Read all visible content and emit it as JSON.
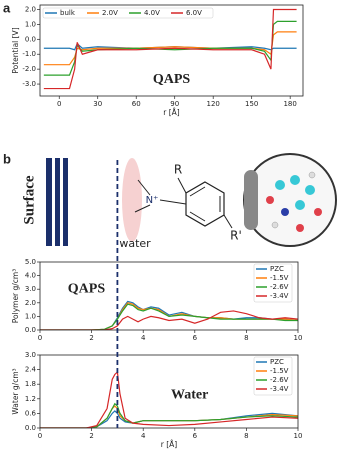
{
  "panel_labels": [
    "a",
    "b"
  ],
  "diagram": {
    "surface": "Surface",
    "substituent_top": "R",
    "nitrogen": "N⁺",
    "substituent_bottom": "R'",
    "water": "water"
  },
  "chart_data": [
    {
      "type": "line",
      "annotation": "QAPS",
      "xlabel": "r [Å]",
      "ylabel": "Potential [V]",
      "x": [
        -12,
        8,
        12,
        14,
        18,
        30,
        60,
        90,
        120,
        150,
        160,
        165,
        167,
        170,
        185
      ],
      "series": [
        {
          "name": "bulk",
          "color": "#1f77b4",
          "values": [
            -0.6,
            -0.6,
            -0.7,
            -0.3,
            -0.6,
            -0.5,
            -0.6,
            -0.5,
            -0.6,
            -0.5,
            -0.6,
            -0.7,
            -0.6,
            -0.6,
            -0.6
          ]
        },
        {
          "name": "2.0V",
          "color": "#ff7f0e",
          "values": [
            -1.7,
            -1.7,
            -1.2,
            -0.6,
            -0.7,
            -0.6,
            -0.6,
            -0.5,
            -0.6,
            -0.6,
            -0.7,
            -1.0,
            0.3,
            0.5,
            0.5
          ]
        },
        {
          "name": "4.0V",
          "color": "#2ca02c",
          "values": [
            -2.4,
            -2.4,
            -1.5,
            -0.4,
            -0.8,
            -0.7,
            -0.6,
            -0.7,
            -0.6,
            -0.6,
            -0.8,
            -1.4,
            1.0,
            1.2,
            1.2
          ]
        },
        {
          "name": "6.0V",
          "color": "#d62728",
          "values": [
            -3.3,
            -3.3,
            -2.0,
            -0.2,
            -1.0,
            -0.7,
            -0.7,
            -0.6,
            -0.7,
            -0.7,
            -1.0,
            -2.0,
            2.0,
            2.0,
            2.0
          ]
        }
      ],
      "xlim": [
        -15,
        190
      ],
      "xticks": [
        0,
        30,
        60,
        90,
        120,
        150,
        180
      ],
      "ylim": [
        -3.8,
        2.3
      ],
      "yticks": [
        {
          "value": 2,
          "label": "2.0"
        },
        {
          "value": 1,
          "label": "1.0"
        },
        {
          "value": 0,
          "label": "0.0"
        },
        {
          "value": -1,
          "label": "-1.0"
        },
        {
          "value": -2,
          "label": "-2.0"
        },
        {
          "value": -3,
          "label": "-3.0"
        }
      ],
      "legend": "upper left"
    },
    {
      "type": "line",
      "annotation": "QAPS",
      "ylabel": "Polymer g/cm³",
      "x": [
        0,
        2,
        2.5,
        2.8,
        3.0,
        3.2,
        3.4,
        3.6,
        3.8,
        4,
        4.3,
        4.6,
        5,
        5.5,
        6,
        6.5,
        7,
        7.5,
        8,
        8.5,
        9,
        9.5,
        10
      ],
      "series": [
        {
          "name": "PZC",
          "color": "#1f77b4",
          "values": [
            0,
            0,
            0.05,
            0.3,
            0.9,
            1.6,
            2.1,
            2.0,
            1.7,
            1.5,
            1.7,
            1.6,
            1.1,
            1.3,
            1.0,
            0.9,
            0.9,
            0.8,
            0.9,
            0.9,
            0.8,
            0.8,
            0.7
          ]
        },
        {
          "name": "-1.5V",
          "color": "#ff7f0e",
          "values": [
            0,
            0,
            0.05,
            0.3,
            0.8,
            1.5,
            2.0,
            1.9,
            1.6,
            1.5,
            1.6,
            1.5,
            1.0,
            1.2,
            1.0,
            0.9,
            0.9,
            0.8,
            0.8,
            0.8,
            0.8,
            0.8,
            0.7
          ]
        },
        {
          "name": "-2.6V",
          "color": "#2ca02c",
          "values": [
            0,
            0,
            0.05,
            0.3,
            0.8,
            1.4,
            1.9,
            1.8,
            1.5,
            1.4,
            1.6,
            1.4,
            1.0,
            1.1,
            1.0,
            0.9,
            0.8,
            0.8,
            0.8,
            0.8,
            0.8,
            0.7,
            0.7
          ]
        },
        {
          "name": "-3.4V",
          "color": "#d62728",
          "values": [
            0,
            0,
            0,
            0.1,
            0.3,
            0.8,
            1.0,
            0.8,
            0.6,
            0.8,
            1.0,
            0.9,
            0.7,
            0.8,
            0.5,
            0.8,
            1.3,
            1.4,
            1.2,
            0.9,
            0.8,
            0.9,
            0.8
          ]
        }
      ],
      "xlim": [
        0,
        10
      ],
      "xticks": [
        0,
        2,
        4,
        6,
        8,
        10
      ],
      "ylim": [
        0,
        5
      ],
      "yticks": [
        {
          "value": 0,
          "label": "0.0"
        },
        {
          "value": 1,
          "label": "1.0"
        },
        {
          "value": 2,
          "label": "2.0"
        },
        {
          "value": 3,
          "label": "3.0"
        },
        {
          "value": 4,
          "label": "4.0"
        },
        {
          "value": 5,
          "label": "5.0"
        }
      ],
      "legend": "upper right"
    },
    {
      "type": "line",
      "annotation": "Water",
      "xlabel": "r [Å]",
      "ylabel": "Water g/cm³",
      "x": [
        0,
        1.8,
        2.2,
        2.6,
        2.8,
        2.9,
        3.0,
        3.1,
        3.3,
        3.6,
        4,
        5,
        6,
        7,
        8,
        9,
        10
      ],
      "series": [
        {
          "name": "PZC",
          "color": "#1f77b4",
          "values": [
            0,
            0,
            0.05,
            0.3,
            0.6,
            0.7,
            0.6,
            0.4,
            0.25,
            0.2,
            0.3,
            0.3,
            0.3,
            0.35,
            0.5,
            0.6,
            0.5
          ]
        },
        {
          "name": "-1.5V",
          "color": "#ff7f0e",
          "values": [
            0,
            0,
            0.05,
            0.4,
            0.8,
            0.9,
            0.8,
            0.5,
            0.3,
            0.2,
            0.3,
            0.3,
            0.3,
            0.35,
            0.45,
            0.55,
            0.5
          ]
        },
        {
          "name": "-2.6V",
          "color": "#2ca02c",
          "values": [
            0,
            0,
            0.05,
            0.4,
            0.8,
            1.0,
            0.9,
            0.6,
            0.3,
            0.2,
            0.3,
            0.3,
            0.3,
            0.35,
            0.45,
            0.5,
            0.45
          ]
        },
        {
          "name": "-3.4V",
          "color": "#d62728",
          "values": [
            0,
            0,
            0.1,
            0.8,
            2.0,
            2.2,
            2.3,
            1.4,
            0.4,
            0.2,
            0.15,
            0.1,
            0.15,
            0.25,
            0.35,
            0.45,
            0.4
          ]
        }
      ],
      "xlim": [
        0,
        10
      ],
      "xticks": [
        0,
        2,
        4,
        6,
        8,
        10
      ],
      "ylim": [
        0,
        3
      ],
      "yticks": [
        {
          "value": 0,
          "label": "0.0"
        },
        {
          "value": 0.6,
          "label": "0.6"
        },
        {
          "value": 1.2,
          "label": "1.2"
        },
        {
          "value": 1.8,
          "label": "1.8"
        },
        {
          "value": 2.4,
          "label": "2.4"
        },
        {
          "value": 3,
          "label": "3.0"
        }
      ],
      "legend": "upper right"
    }
  ]
}
